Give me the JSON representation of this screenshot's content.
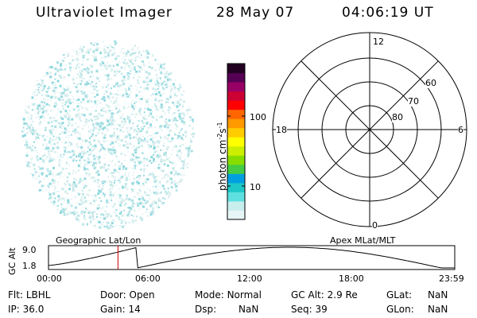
{
  "header": {
    "title": "Ultraviolet Imager",
    "date": "28 May 07",
    "time": "04:06:19 UT"
  },
  "colorbar": {
    "label": "photon cm",
    "label_exp1": "-2",
    "label_s": "s",
    "label_exp2": "-1",
    "ticks": [
      {
        "label": "100",
        "value": 100
      },
      {
        "label": "10",
        "value": 10
      }
    ],
    "colors": [
      "#e6f5f5",
      "#c8eeee",
      "#5fe0e0",
      "#1fc8c8",
      "#00a0e0",
      "#44cc44",
      "#88dd00",
      "#ccee00",
      "#ffff00",
      "#ffcc00",
      "#ff9900",
      "#ff6600",
      "#ff0000",
      "#cc0033",
      "#990066",
      "#550055",
      "#220022"
    ]
  },
  "polar": {
    "mlt_labels": {
      "top": "12",
      "right": "6",
      "bottom": "0",
      "left": "18"
    },
    "lat_labels": [
      "60",
      "70",
      "80"
    ]
  },
  "timeline": {
    "left_title": "Geographic Lat/Lon",
    "right_title": "Apex MLat/MLT",
    "axis_label": "GC Alt",
    "y_ticks": [
      "9.0",
      "1.8"
    ],
    "x_ticks": [
      "00:00",
      "06:00",
      "12:00",
      "18:00",
      "23:59"
    ],
    "current_hour": 4.105
  },
  "status": {
    "filter_label": "Flt:",
    "filter_value": "LBHL",
    "door_label": "Door:",
    "door_value": "Open",
    "mode_label": "Mode:",
    "mode_value": "Normal",
    "gcalt_label": "GC Alt:",
    "gcalt_value": "2.9 Re",
    "glat_label": "GLat:",
    "glat_value": "NaN",
    "ip_label": "IP:",
    "ip_value": "36.0",
    "gain_label": "Gain:",
    "gain_value": "14",
    "dsp_label": "Dsp:",
    "dsp_value": "NaN",
    "seq_label": "Seq:",
    "seq_value": "39",
    "glon_label": "GLon:",
    "glon_value": "NaN"
  }
}
